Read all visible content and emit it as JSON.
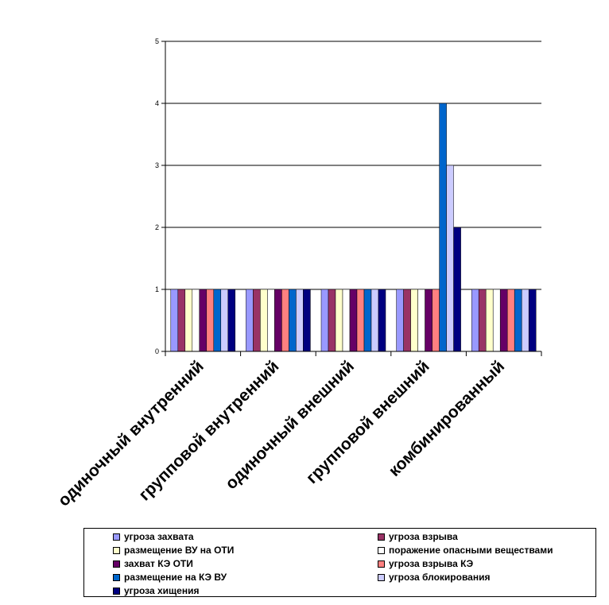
{
  "chart_data": {
    "type": "bar",
    "title": "",
    "xlabel": "",
    "ylabel": "",
    "ylim": [
      0,
      5
    ],
    "yticks": [
      0,
      1,
      2,
      3,
      4,
      5
    ],
    "grid": true,
    "legend_position": "bottom",
    "categories": [
      "одиночный внутренний",
      "групповой внутренний",
      "одиночный внешний",
      "групповой внешний",
      "комбинированный"
    ],
    "series": [
      {
        "name": "угроза захвата",
        "color": "#9999ff",
        "values": [
          1,
          1,
          1,
          1,
          1
        ]
      },
      {
        "name": "угроза взрыва",
        "color": "#993366",
        "values": [
          1,
          1,
          1,
          1,
          1
        ]
      },
      {
        "name": "размещение ВУ на ОТИ",
        "color": "#ffffcc",
        "values": [
          1,
          1,
          1,
          1,
          1
        ]
      },
      {
        "name": "поражение опасными веществами",
        "color": "#ffffff",
        "values": [
          1,
          1,
          1,
          1,
          1
        ]
      },
      {
        "name": "захват КЭ ОТИ",
        "color": "#660066",
        "values": [
          1,
          1,
          1,
          1,
          1
        ]
      },
      {
        "name": "угроза взрыва КЭ",
        "color": "#ff8080",
        "values": [
          1,
          1,
          1,
          1,
          1
        ]
      },
      {
        "name": "размещение на КЭ ВУ",
        "color": "#0066cc",
        "values": [
          1,
          1,
          1,
          4,
          1
        ]
      },
      {
        "name": "угроза блокирования",
        "color": "#ccccff",
        "values": [
          1,
          1,
          1,
          3,
          1
        ]
      },
      {
        "name": "угроза хищения",
        "color": "#000080",
        "values": [
          1,
          1,
          1,
          2,
          1
        ]
      }
    ]
  }
}
